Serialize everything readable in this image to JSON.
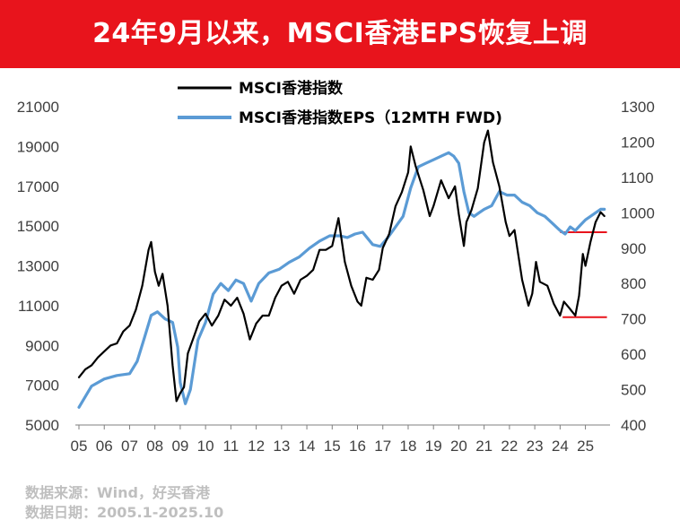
{
  "header": {
    "title": "24年9月以来，MSCI香港EPS恢复上调",
    "background_color": "#e8141c"
  },
  "source": {
    "line1": "数据来源：Wind，好买香港",
    "line2": "数据日期：2005.1-2025.10"
  },
  "chart_data": {
    "type": "line",
    "legend_position": "top",
    "grid": false,
    "x_ticks": [
      "05",
      "06",
      "07",
      "08",
      "09",
      "10",
      "11",
      "12",
      "13",
      "14",
      "15",
      "16",
      "17",
      "18",
      "19",
      "20",
      "21",
      "22",
      "23",
      "24",
      "25"
    ],
    "xlim": [
      2005.0,
      2025.83
    ],
    "y_left": {
      "ticks": [
        "5000",
        "7000",
        "9000",
        "11000",
        "13000",
        "15000",
        "17000",
        "19000",
        "21000"
      ],
      "lim": [
        5000,
        21000
      ]
    },
    "y_right": {
      "ticks": [
        "400",
        "500",
        "600",
        "700",
        "800",
        "900",
        "1000",
        "1100",
        "1200",
        "1300"
      ],
      "lim": [
        400,
        1300
      ]
    },
    "series": [
      {
        "name": "MSCI香港指数",
        "axis": "left",
        "color": "#000000",
        "x": [
          2005.0,
          2005.25,
          2005.5,
          2005.75,
          2006.0,
          2006.25,
          2006.5,
          2006.75,
          2007.0,
          2007.25,
          2007.5,
          2007.75,
          2007.85,
          2008.0,
          2008.15,
          2008.3,
          2008.5,
          2008.7,
          2008.85,
          2009.0,
          2009.15,
          2009.3,
          2009.5,
          2009.75,
          2010.0,
          2010.25,
          2010.5,
          2010.75,
          2011.0,
          2011.25,
          2011.5,
          2011.75,
          2012.0,
          2012.25,
          2012.5,
          2012.75,
          2013.0,
          2013.25,
          2013.5,
          2013.75,
          2014.0,
          2014.25,
          2014.5,
          2014.75,
          2015.0,
          2015.25,
          2015.5,
          2015.75,
          2016.0,
          2016.15,
          2016.35,
          2016.6,
          2016.85,
          2017.0,
          2017.25,
          2017.5,
          2017.75,
          2018.0,
          2018.1,
          2018.3,
          2018.6,
          2018.85,
          2019.0,
          2019.3,
          2019.6,
          2019.85,
          2020.0,
          2020.2,
          2020.3,
          2020.5,
          2020.75,
          2021.0,
          2021.15,
          2021.35,
          2021.6,
          2021.85,
          2022.0,
          2022.2,
          2022.5,
          2022.75,
          2022.9,
          2023.05,
          2023.2,
          2023.5,
          2023.75,
          2024.0,
          2024.15,
          2024.35,
          2024.6,
          2024.75,
          2024.9,
          2025.0,
          2025.2,
          2025.4,
          2025.6,
          2025.75
        ],
        "values": [
          7400,
          7800,
          8000,
          8400,
          8700,
          9000,
          9100,
          9700,
          10000,
          10800,
          12000,
          13800,
          14200,
          12700,
          12000,
          12600,
          11000,
          8000,
          6200,
          6600,
          6900,
          8600,
          9300,
          10200,
          10600,
          10000,
          10500,
          11300,
          11000,
          11400,
          10600,
          9300,
          10100,
          10500,
          10500,
          11400,
          12000,
          12200,
          11600,
          12300,
          12500,
          12800,
          13800,
          13800,
          14000,
          15400,
          13200,
          12000,
          11200,
          11000,
          12400,
          12300,
          12800,
          13900,
          14600,
          16000,
          16700,
          17700,
          19000,
          18000,
          16800,
          15500,
          16000,
          17300,
          16400,
          17000,
          15600,
          14000,
          15200,
          15800,
          16900,
          19200,
          19800,
          18200,
          17000,
          15200,
          14500,
          14800,
          12300,
          11000,
          11600,
          13200,
          12200,
          12000,
          11100,
          10500,
          11200,
          10900,
          10500,
          11500,
          13600,
          13000,
          14200,
          15200,
          15700,
          15500
        ]
      },
      {
        "name": "MSCI香港指数EPS（12MTH FWD)",
        "axis": "right",
        "color": "#5b9bd5",
        "x": [
          2005.0,
          2005.5,
          2006.0,
          2006.5,
          2007.0,
          2007.3,
          2007.6,
          2007.85,
          2008.1,
          2008.4,
          2008.7,
          2008.9,
          2009.0,
          2009.2,
          2009.4,
          2009.7,
          2010.0,
          2010.3,
          2010.6,
          2010.9,
          2011.2,
          2011.5,
          2011.8,
          2012.1,
          2012.5,
          2012.9,
          2013.3,
          2013.7,
          2014.1,
          2014.5,
          2014.9,
          2015.3,
          2015.6,
          2015.9,
          2016.2,
          2016.6,
          2016.9,
          2017.2,
          2017.5,
          2017.8,
          2018.1,
          2018.4,
          2018.7,
          2019.0,
          2019.3,
          2019.6,
          2019.8,
          2020.0,
          2020.2,
          2020.4,
          2020.6,
          2020.8,
          2021.0,
          2021.3,
          2021.6,
          2021.9,
          2022.2,
          2022.5,
          2022.8,
          2023.1,
          2023.4,
          2023.7,
          2024.0,
          2024.2,
          2024.4,
          2024.6,
          2024.8,
          2025.0,
          2025.2,
          2025.4,
          2025.6,
          2025.75
        ],
        "values": [
          450,
          510,
          530,
          540,
          545,
          580,
          650,
          710,
          720,
          700,
          690,
          620,
          520,
          460,
          500,
          640,
          690,
          770,
          800,
          780,
          810,
          800,
          750,
          800,
          830,
          840,
          860,
          875,
          900,
          920,
          935,
          935,
          930,
          940,
          945,
          910,
          905,
          930,
          960,
          990,
          1070,
          1130,
          1140,
          1150,
          1160,
          1170,
          1160,
          1140,
          1060,
          1000,
          990,
          1000,
          1010,
          1020,
          1060,
          1050,
          1050,
          1030,
          1020,
          1000,
          990,
          970,
          950,
          940,
          960,
          950,
          965,
          980,
          990,
          1000,
          1010,
          1010
        ]
      }
    ],
    "reference_lines": [
      {
        "axis": "right",
        "value": 945,
        "x_from": 2024.0,
        "x_to": 2025.85,
        "color": "#e8141c"
      },
      {
        "axis": "right",
        "value": 705,
        "x_from": 2024.1,
        "x_to": 2025.85,
        "color": "#e8141c"
      }
    ]
  }
}
